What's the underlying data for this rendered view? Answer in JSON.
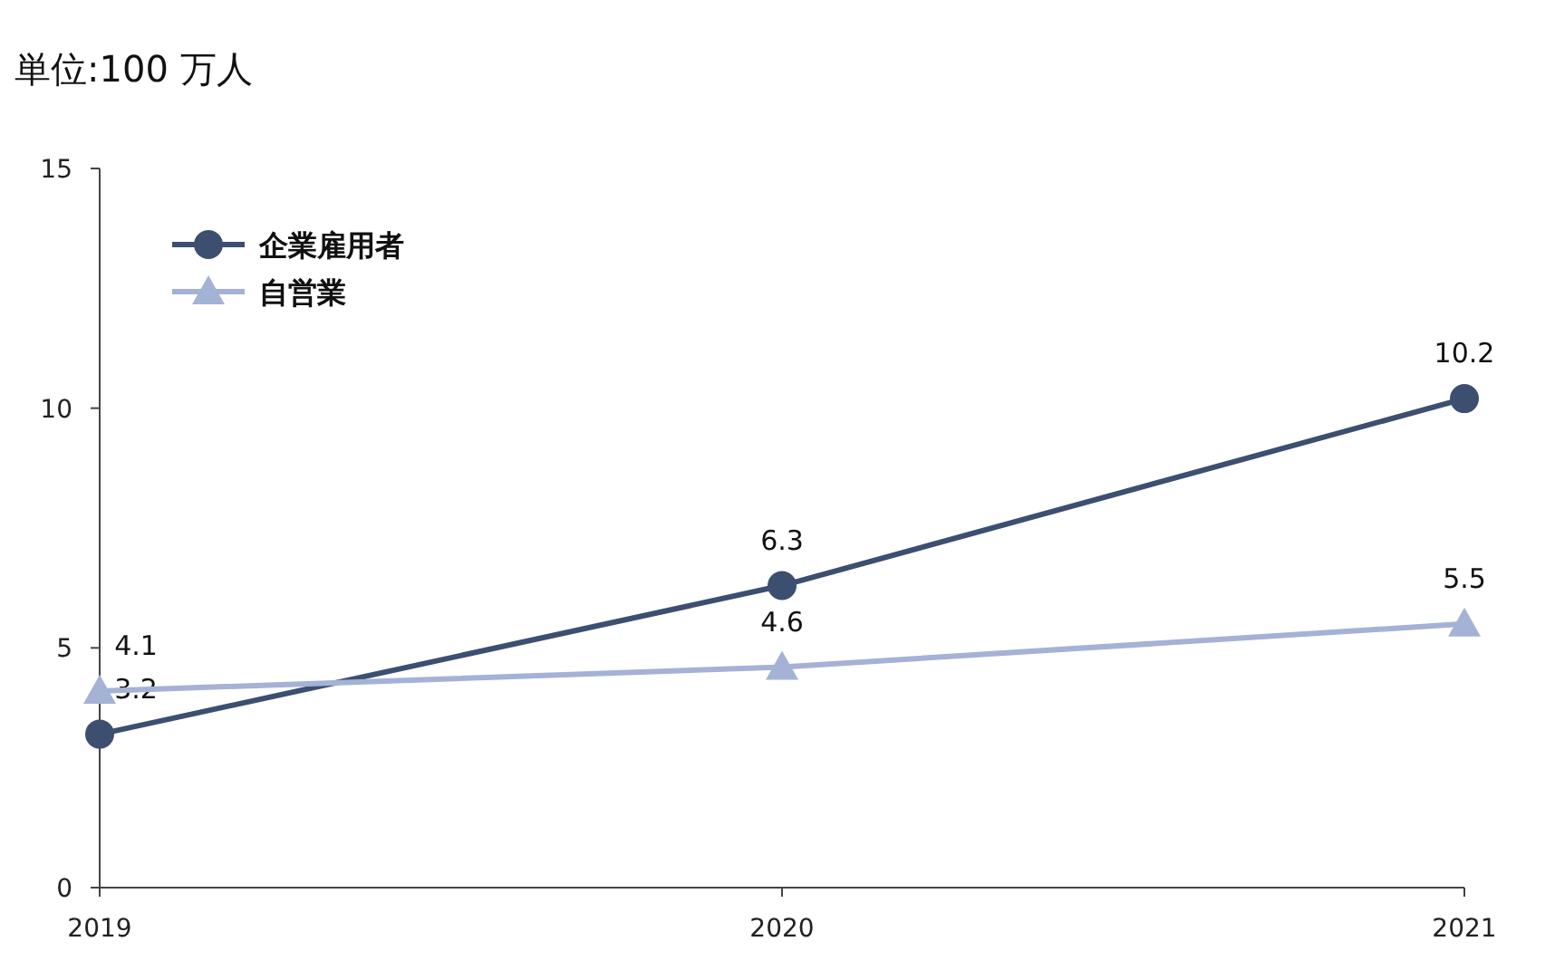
{
  "chart_data": {
    "type": "line",
    "title": "単位:100 万人",
    "x": [
      2019,
      2020,
      2021
    ],
    "xlim": [
      2019,
      2021
    ],
    "xticks": [
      2019,
      2020,
      2021
    ],
    "ylim": [
      0,
      15
    ],
    "yticks": [
      0,
      5,
      10,
      15
    ],
    "grid": false,
    "legend": "top left",
    "data_labels": true,
    "line_style": "solid",
    "series": [
      {
        "name": "企業雇用者",
        "color": "#3d4f70",
        "marker": "circle",
        "values": [
          3.2,
          6.3,
          10.2
        ]
      },
      {
        "name": "自営業",
        "color": "#a4b2d5",
        "marker": "triangle",
        "values": [
          4.1,
          4.6,
          5.5
        ]
      }
    ]
  }
}
